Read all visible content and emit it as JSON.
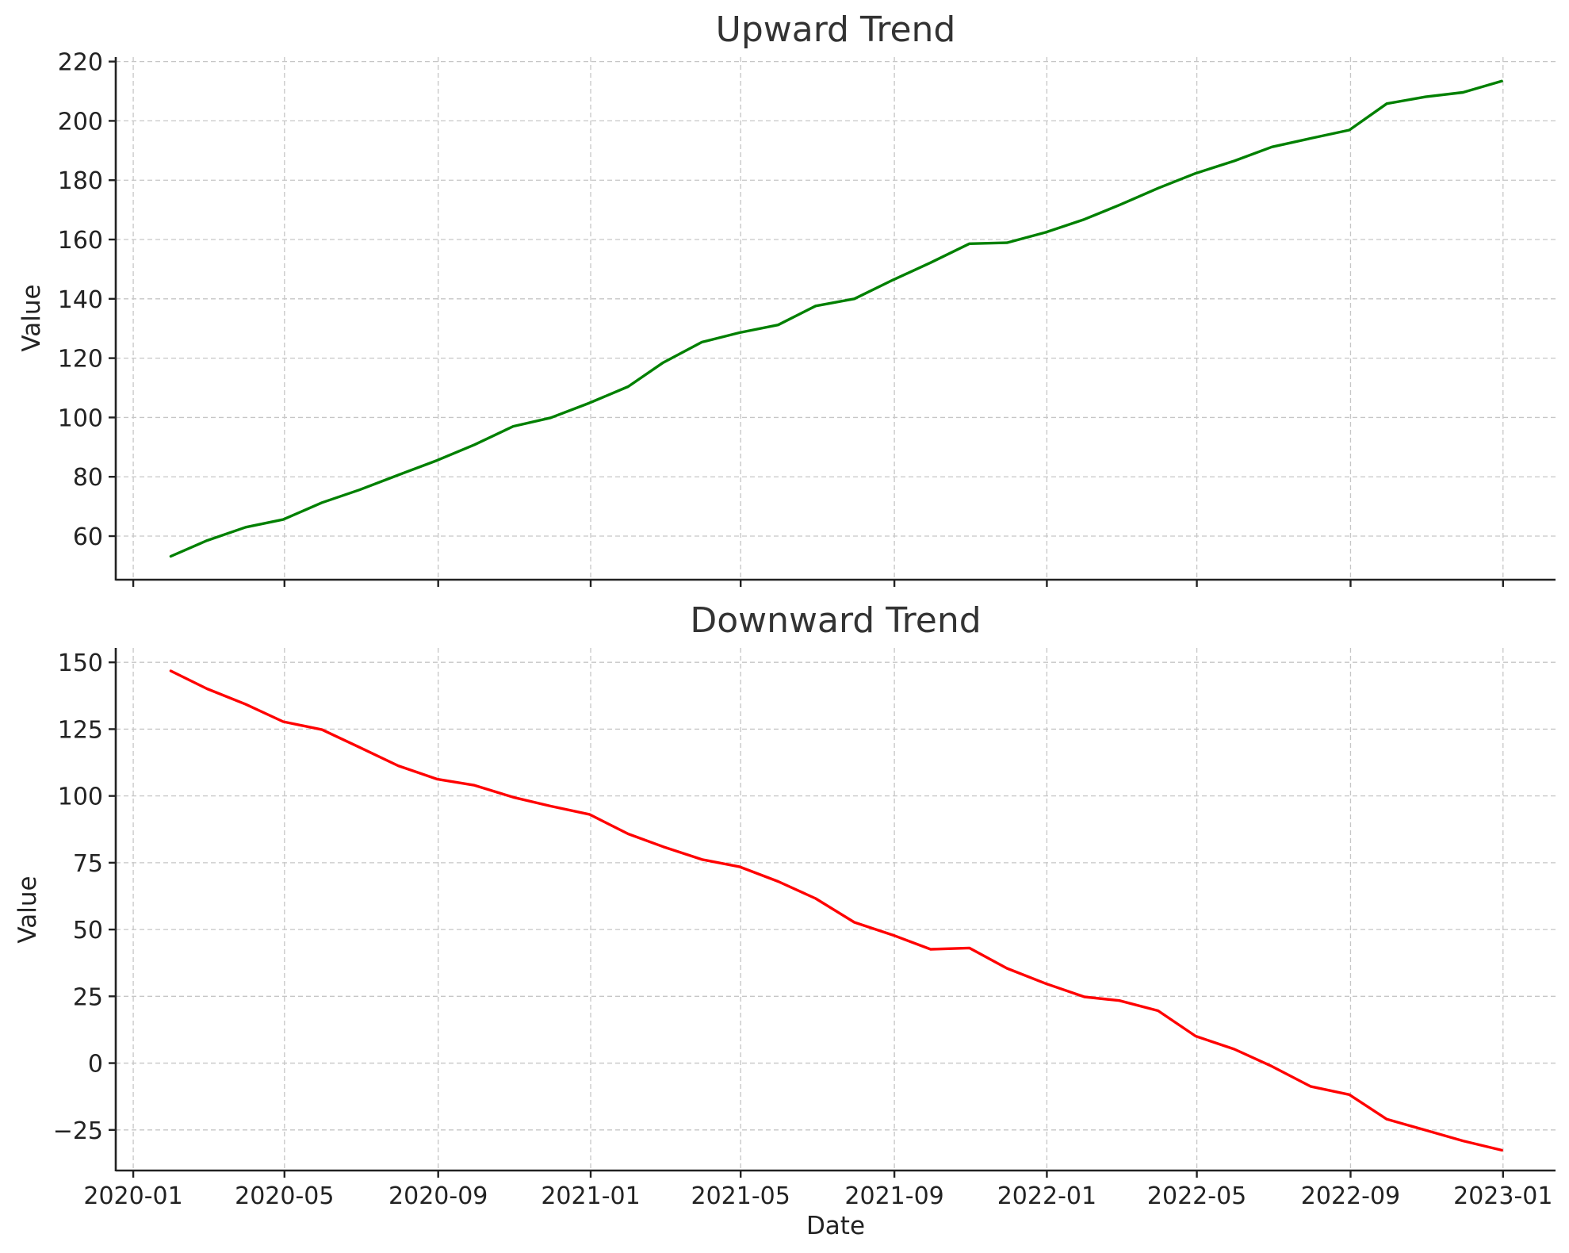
{
  "chart_data": [
    {
      "type": "line",
      "title": "Upward Trend",
      "xlabel": "",
      "ylabel": "Value",
      "ylim": [
        45.3,
        221.5
      ],
      "yticks": [
        60,
        80,
        100,
        120,
        140,
        160,
        180,
        200,
        220
      ],
      "xticks": [
        "2020-01",
        "2020-05",
        "2020-09",
        "2021-01",
        "2021-05",
        "2021-09",
        "2022-01",
        "2022-05",
        "2022-09",
        "2023-01"
      ],
      "x_tick_labels_shown": false,
      "grid": true,
      "x": [
        "2020-01-31",
        "2020-02-29",
        "2020-03-31",
        "2020-04-30",
        "2020-05-31",
        "2020-06-30",
        "2020-07-31",
        "2020-08-31",
        "2020-09-30",
        "2020-10-31",
        "2020-11-30",
        "2020-12-31",
        "2021-01-31",
        "2021-02-28",
        "2021-03-31",
        "2021-04-30",
        "2021-05-31",
        "2021-06-30",
        "2021-07-31",
        "2021-08-31",
        "2021-09-30",
        "2021-10-31",
        "2021-11-30",
        "2021-12-31",
        "2022-01-31",
        "2022-02-28",
        "2022-03-31",
        "2022-04-30",
        "2022-05-31",
        "2022-06-30",
        "2022-07-31",
        "2022-08-31",
        "2022-09-30",
        "2022-10-31",
        "2022-11-30",
        "2022-12-31"
      ],
      "series": [
        {
          "color": "#008000",
          "values": [
            53.2,
            58.5,
            63.0,
            65.6,
            71.3,
            75.6,
            80.6,
            85.5,
            90.8,
            97.0,
            99.9,
            104.9,
            110.4,
            118.5,
            125.4,
            128.6,
            131.2,
            137.6,
            140.0,
            146.4,
            152.2,
            158.6,
            158.9,
            162.4,
            166.8,
            171.6,
            177.3,
            182.3,
            186.5,
            191.2,
            194.1,
            196.9,
            205.8,
            208.1,
            209.6,
            213.4
          ]
        }
      ]
    },
    {
      "type": "line",
      "title": "Downward Trend",
      "xlabel": "Date",
      "ylabel": "Value",
      "ylim": [
        -40.2,
        155.4
      ],
      "yticks": [
        -25,
        0,
        25,
        50,
        75,
        100,
        125,
        150
      ],
      "ytick_labels": [
        "−25",
        "0",
        "25",
        "50",
        "75",
        "100",
        "125",
        "150"
      ],
      "xticks": [
        "2020-01",
        "2020-05",
        "2020-09",
        "2021-01",
        "2021-05",
        "2021-09",
        "2022-01",
        "2022-05",
        "2022-09",
        "2023-01"
      ],
      "grid": true,
      "x": [
        "2020-01-31",
        "2020-02-29",
        "2020-03-31",
        "2020-04-30",
        "2020-05-31",
        "2020-06-30",
        "2020-07-31",
        "2020-08-31",
        "2020-09-30",
        "2020-10-31",
        "2020-11-30",
        "2020-12-31",
        "2021-01-31",
        "2021-02-28",
        "2021-03-31",
        "2021-04-30",
        "2021-05-31",
        "2021-06-30",
        "2021-07-31",
        "2021-08-31",
        "2021-09-30",
        "2021-10-31",
        "2021-11-30",
        "2021-12-31",
        "2022-01-31",
        "2022-02-28",
        "2022-03-31",
        "2022-04-30",
        "2022-05-31",
        "2022-06-30",
        "2022-07-31",
        "2022-08-31",
        "2022-09-30",
        "2022-10-31",
        "2022-11-30",
        "2022-12-31"
      ],
      "series": [
        {
          "color": "#ff0000",
          "values": [
            146.8,
            140.1,
            134.3,
            127.8,
            124.8,
            118.2,
            111.3,
            106.3,
            104.0,
            99.5,
            96.2,
            93.1,
            85.8,
            81.0,
            76.2,
            73.5,
            68.0,
            61.6,
            52.7,
            47.9,
            42.6,
            43.1,
            35.5,
            29.8,
            24.8,
            23.4,
            19.6,
            10.1,
            5.2,
            -1.2,
            -8.7,
            -11.8,
            -21.0,
            -25.1,
            -29.1,
            -32.6
          ]
        }
      ]
    }
  ]
}
